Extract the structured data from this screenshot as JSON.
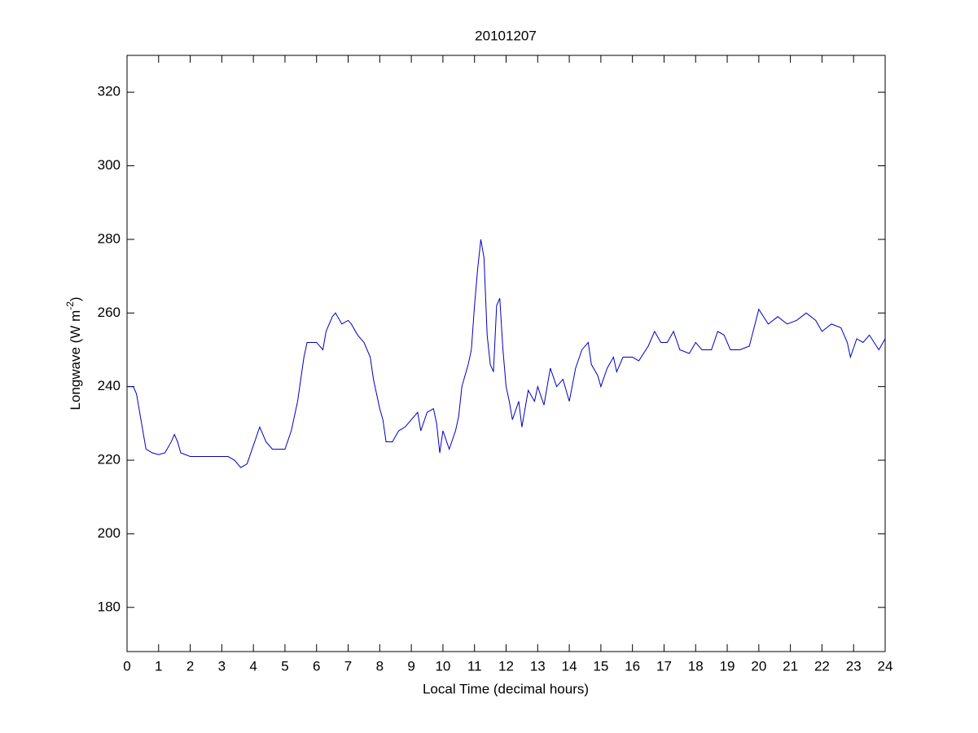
{
  "chart_data": {
    "type": "line",
    "title": "20101207",
    "xlabel": "Local Time (decimal hours)",
    "ylabel": {
      "text": "Longwave (W m",
      "superscript": "-2",
      "suffix": ")"
    },
    "xlim": [
      0,
      24
    ],
    "ylim": [
      168,
      330
    ],
    "xticks": [
      0,
      1,
      2,
      3,
      4,
      5,
      6,
      7,
      8,
      9,
      10,
      11,
      12,
      13,
      14,
      15,
      16,
      17,
      18,
      19,
      20,
      21,
      22,
      23,
      24
    ],
    "yticks": [
      180,
      200,
      220,
      240,
      260,
      280,
      300,
      320
    ],
    "grid": false,
    "x": [
      0,
      0.2,
      0.3,
      0.5,
      0.6,
      0.8,
      1.0,
      1.2,
      1.4,
      1.5,
      1.6,
      1.7,
      2.0,
      2.5,
      3.0,
      3.2,
      3.4,
      3.6,
      3.8,
      4.0,
      4.2,
      4.4,
      4.6,
      4.8,
      5.0,
      5.2,
      5.4,
      5.6,
      5.7,
      5.9,
      6.0,
      6.2,
      6.3,
      6.5,
      6.6,
      6.8,
      7.0,
      7.1,
      7.3,
      7.5,
      7.7,
      7.8,
      8.0,
      8.1,
      8.2,
      8.4,
      8.6,
      8.8,
      9.0,
      9.2,
      9.3,
      9.5,
      9.7,
      9.8,
      9.9,
      10.0,
      10.2,
      10.4,
      10.5,
      10.6,
      10.8,
      10.9,
      11.0,
      11.1,
      11.2,
      11.3,
      11.4,
      11.5,
      11.6,
      11.7,
      11.8,
      11.9,
      12.0,
      12.1,
      12.2,
      12.4,
      12.5,
      12.7,
      12.9,
      13.0,
      13.2,
      13.4,
      13.6,
      13.8,
      14.0,
      14.2,
      14.4,
      14.6,
      14.7,
      14.9,
      15.0,
      15.2,
      15.4,
      15.5,
      15.7,
      16.0,
      16.2,
      16.5,
      16.7,
      16.9,
      17.1,
      17.3,
      17.5,
      17.8,
      18.0,
      18.2,
      18.5,
      18.7,
      18.9,
      19.1,
      19.4,
      19.7,
      20.0,
      20.3,
      20.6,
      20.9,
      21.2,
      21.5,
      21.8,
      22.0,
      22.3,
      22.6,
      22.8,
      22.9,
      23.1,
      23.3,
      23.5,
      23.8,
      24.0
    ],
    "series": [
      {
        "name": "Longwave",
        "color": "#0000c0",
        "values": [
          240,
          240,
          238,
          228,
          223,
          222,
          221.5,
          222,
          225,
          227,
          225,
          222,
          221,
          221,
          221,
          221,
          220,
          218,
          219,
          224,
          229,
          225,
          223,
          223,
          223,
          228,
          236,
          248,
          252,
          252,
          252,
          250,
          255,
          259,
          260,
          257,
          258,
          257,
          254,
          252,
          248,
          242,
          234,
          231,
          225,
          225,
          228,
          229,
          231,
          233,
          228,
          233,
          234,
          230,
          222,
          228,
          223,
          228,
          232,
          240,
          246,
          250,
          262,
          272,
          280,
          275,
          254,
          246,
          244,
          262,
          264,
          250,
          240,
          236,
          231,
          236,
          229,
          239,
          236,
          240,
          235,
          245,
          240,
          242,
          236,
          245,
          250,
          252,
          246,
          243,
          240,
          245,
          248,
          244,
          248,
          248,
          247,
          251,
          255,
          252,
          252,
          255,
          250,
          249,
          252,
          250,
          250,
          255,
          254,
          250,
          250,
          251,
          261,
          257,
          259,
          257,
          258,
          260,
          258,
          255,
          257,
          256,
          252,
          248,
          253,
          252,
          254,
          250,
          253
        ]
      }
    ]
  }
}
